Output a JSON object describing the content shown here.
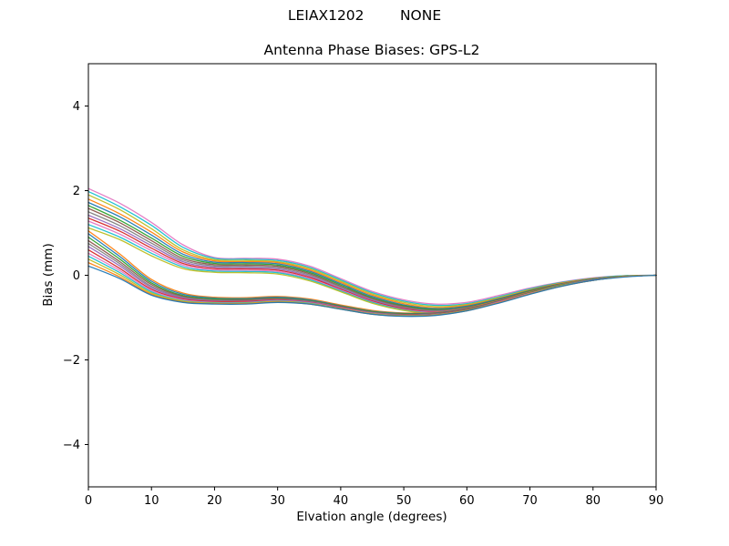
{
  "figure": {
    "suptitle": "LEIAX1202        NONE"
  },
  "chart_data": {
    "type": "line",
    "title": "Antenna Phase Biases: GPS-L2",
    "xlabel": "Elvation angle (degrees)",
    "ylabel": "Bias (mm)",
    "xlim": [
      0,
      90
    ],
    "ylim": [
      -5,
      5
    ],
    "xticks": [
      0,
      10,
      20,
      30,
      40,
      50,
      60,
      70,
      80,
      90
    ],
    "yticks": [
      -4,
      -2,
      0,
      2,
      4
    ],
    "grid": false,
    "legend": "none",
    "x": [
      0,
      5,
      10,
      15,
      20,
      25,
      30,
      35,
      40,
      45,
      50,
      55,
      60,
      65,
      70,
      75,
      80,
      85,
      90
    ],
    "series": [
      {
        "color": "#e377c2",
        "values": [
          2.05,
          1.7,
          1.25,
          0.72,
          0.42,
          0.4,
          0.38,
          0.22,
          -0.08,
          -0.38,
          -0.58,
          -0.68,
          -0.64,
          -0.48,
          -0.3,
          -0.16,
          -0.06,
          -0.01,
          0.0
        ]
      },
      {
        "color": "#17becf",
        "values": [
          1.98,
          1.62,
          1.18,
          0.66,
          0.4,
          0.38,
          0.35,
          0.19,
          -0.11,
          -0.41,
          -0.61,
          -0.71,
          -0.67,
          -0.51,
          -0.32,
          -0.17,
          -0.07,
          -0.01,
          0.0
        ]
      },
      {
        "color": "#bcbd22",
        "values": [
          1.9,
          1.55,
          1.1,
          0.6,
          0.37,
          0.35,
          0.32,
          0.16,
          -0.14,
          -0.44,
          -0.64,
          -0.74,
          -0.69,
          -0.53,
          -0.34,
          -0.18,
          -0.08,
          -0.02,
          0.0
        ]
      },
      {
        "color": "#ff7f0e",
        "values": [
          1.8,
          1.45,
          1.02,
          0.55,
          0.34,
          0.32,
          0.3,
          0.13,
          -0.17,
          -0.47,
          -0.67,
          -0.77,
          -0.71,
          -0.55,
          -0.35,
          -0.19,
          -0.08,
          -0.02,
          0.0
        ]
      },
      {
        "color": "#1f77b4",
        "values": [
          1.72,
          1.38,
          0.95,
          0.5,
          0.31,
          0.3,
          0.27,
          0.1,
          -0.2,
          -0.5,
          -0.7,
          -0.79,
          -0.73,
          -0.56,
          -0.36,
          -0.2,
          -0.09,
          -0.02,
          0.0
        ]
      },
      {
        "color": "#2ca02c",
        "values": [
          1.65,
          1.3,
          0.88,
          0.45,
          0.28,
          0.27,
          0.24,
          0.07,
          -0.23,
          -0.53,
          -0.72,
          -0.81,
          -0.75,
          -0.58,
          -0.37,
          -0.21,
          -0.09,
          -0.02,
          0.0
        ]
      },
      {
        "color": "#8c564b",
        "values": [
          1.58,
          1.24,
          0.82,
          0.4,
          0.25,
          0.24,
          0.21,
          0.04,
          -0.26,
          -0.55,
          -0.74,
          -0.83,
          -0.76,
          -0.59,
          -0.38,
          -0.21,
          -0.1,
          -0.03,
          0.0
        ]
      },
      {
        "color": "#7f7f7f",
        "values": [
          1.5,
          1.17,
          0.76,
          0.36,
          0.22,
          0.21,
          0.18,
          0.01,
          -0.28,
          -0.57,
          -0.76,
          -0.84,
          -0.77,
          -0.6,
          -0.39,
          -0.22,
          -0.1,
          -0.03,
          0.0
        ]
      },
      {
        "color": "#9467bd",
        "values": [
          1.42,
          1.1,
          0.7,
          0.32,
          0.19,
          0.18,
          0.15,
          -0.02,
          -0.31,
          -0.59,
          -0.78,
          -0.86,
          -0.78,
          -0.61,
          -0.4,
          -0.22,
          -0.1,
          -0.03,
          0.0
        ]
      },
      {
        "color": "#d62728",
        "values": [
          1.35,
          1.04,
          0.64,
          0.28,
          0.16,
          0.15,
          0.12,
          -0.05,
          -0.33,
          -0.61,
          -0.79,
          -0.87,
          -0.79,
          -0.61,
          -0.4,
          -0.23,
          -0.11,
          -0.03,
          0.0
        ]
      },
      {
        "color": "#e377c2",
        "values": [
          1.28,
          0.97,
          0.58,
          0.24,
          0.13,
          0.12,
          0.09,
          -0.08,
          -0.35,
          -0.63,
          -0.81,
          -0.88,
          -0.8,
          -0.62,
          -0.41,
          -0.23,
          -0.11,
          -0.03,
          0.0
        ]
      },
      {
        "color": "#17becf",
        "values": [
          1.2,
          0.9,
          0.52,
          0.2,
          0.1,
          0.09,
          0.06,
          -0.1,
          -0.37,
          -0.64,
          -0.82,
          -0.89,
          -0.8,
          -0.62,
          -0.41,
          -0.23,
          -0.11,
          -0.03,
          0.0
        ]
      },
      {
        "color": "#bcbd22",
        "values": [
          1.12,
          0.84,
          0.46,
          0.16,
          0.07,
          0.06,
          0.03,
          -0.13,
          -0.39,
          -0.66,
          -0.83,
          -0.9,
          -0.81,
          -0.63,
          -0.42,
          -0.24,
          -0.11,
          -0.03,
          0.0
        ]
      },
      {
        "color": "#ff7f0e",
        "values": [
          1.05,
          0.5,
          -0.1,
          -0.42,
          -0.52,
          -0.53,
          -0.5,
          -0.56,
          -0.7,
          -0.83,
          -0.89,
          -0.88,
          -0.78,
          -0.6,
          -0.4,
          -0.22,
          -0.1,
          -0.03,
          0.0
        ]
      },
      {
        "color": "#1f77b4",
        "values": [
          0.98,
          0.44,
          -0.14,
          -0.45,
          -0.54,
          -0.55,
          -0.52,
          -0.58,
          -0.72,
          -0.85,
          -0.9,
          -0.89,
          -0.79,
          -0.61,
          -0.41,
          -0.23,
          -0.1,
          -0.03,
          0.0
        ]
      },
      {
        "color": "#2ca02c",
        "values": [
          0.9,
          0.38,
          -0.18,
          -0.48,
          -0.56,
          -0.57,
          -0.54,
          -0.6,
          -0.73,
          -0.86,
          -0.91,
          -0.9,
          -0.8,
          -0.62,
          -0.41,
          -0.23,
          -0.11,
          -0.03,
          0.0
        ]
      },
      {
        "color": "#8c564b",
        "values": [
          0.82,
          0.32,
          -0.22,
          -0.5,
          -0.58,
          -0.58,
          -0.55,
          -0.61,
          -0.74,
          -0.87,
          -0.92,
          -0.9,
          -0.8,
          -0.62,
          -0.42,
          -0.24,
          -0.11,
          -0.03,
          0.0
        ]
      },
      {
        "color": "#7f7f7f",
        "values": [
          0.75,
          0.27,
          -0.26,
          -0.52,
          -0.59,
          -0.6,
          -0.57,
          -0.62,
          -0.75,
          -0.88,
          -0.93,
          -0.91,
          -0.81,
          -0.63,
          -0.42,
          -0.24,
          -0.11,
          -0.03,
          0.0
        ]
      },
      {
        "color": "#9467bd",
        "values": [
          0.68,
          0.22,
          -0.29,
          -0.54,
          -0.61,
          -0.61,
          -0.58,
          -0.63,
          -0.76,
          -0.89,
          -0.94,
          -0.92,
          -0.82,
          -0.63,
          -0.43,
          -0.24,
          -0.11,
          -0.03,
          0.0
        ]
      },
      {
        "color": "#d62728",
        "values": [
          0.6,
          0.16,
          -0.33,
          -0.56,
          -0.62,
          -0.62,
          -0.59,
          -0.64,
          -0.77,
          -0.9,
          -0.94,
          -0.92,
          -0.82,
          -0.64,
          -0.43,
          -0.25,
          -0.12,
          -0.03,
          0.0
        ]
      },
      {
        "color": "#e377c2",
        "values": [
          0.52,
          0.11,
          -0.36,
          -0.58,
          -0.64,
          -0.64,
          -0.6,
          -0.65,
          -0.78,
          -0.9,
          -0.95,
          -0.93,
          -0.83,
          -0.64,
          -0.43,
          -0.25,
          -0.12,
          -0.03,
          0.0
        ]
      },
      {
        "color": "#17becf",
        "values": [
          0.45,
          0.06,
          -0.39,
          -0.6,
          -0.65,
          -0.65,
          -0.61,
          -0.66,
          -0.79,
          -0.91,
          -0.95,
          -0.93,
          -0.83,
          -0.65,
          -0.44,
          -0.25,
          -0.12,
          -0.03,
          0.0
        ]
      },
      {
        "color": "#bcbd22",
        "values": [
          0.38,
          0.01,
          -0.42,
          -0.61,
          -0.66,
          -0.66,
          -0.62,
          -0.67,
          -0.79,
          -0.91,
          -0.96,
          -0.94,
          -0.83,
          -0.65,
          -0.44,
          -0.25,
          -0.12,
          -0.03,
          0.0
        ]
      },
      {
        "color": "#ff7f0e",
        "values": [
          0.3,
          -0.04,
          -0.45,
          -0.63,
          -0.67,
          -0.67,
          -0.63,
          -0.68,
          -0.8,
          -0.92,
          -0.96,
          -0.94,
          -0.84,
          -0.65,
          -0.44,
          -0.26,
          -0.12,
          -0.03,
          0.0
        ]
      },
      {
        "color": "#1f77b4",
        "values": [
          0.22,
          -0.08,
          -0.47,
          -0.64,
          -0.68,
          -0.68,
          -0.64,
          -0.68,
          -0.8,
          -0.92,
          -0.97,
          -0.95,
          -0.84,
          -0.66,
          -0.45,
          -0.26,
          -0.12,
          -0.04,
          0.0
        ]
      }
    ]
  }
}
